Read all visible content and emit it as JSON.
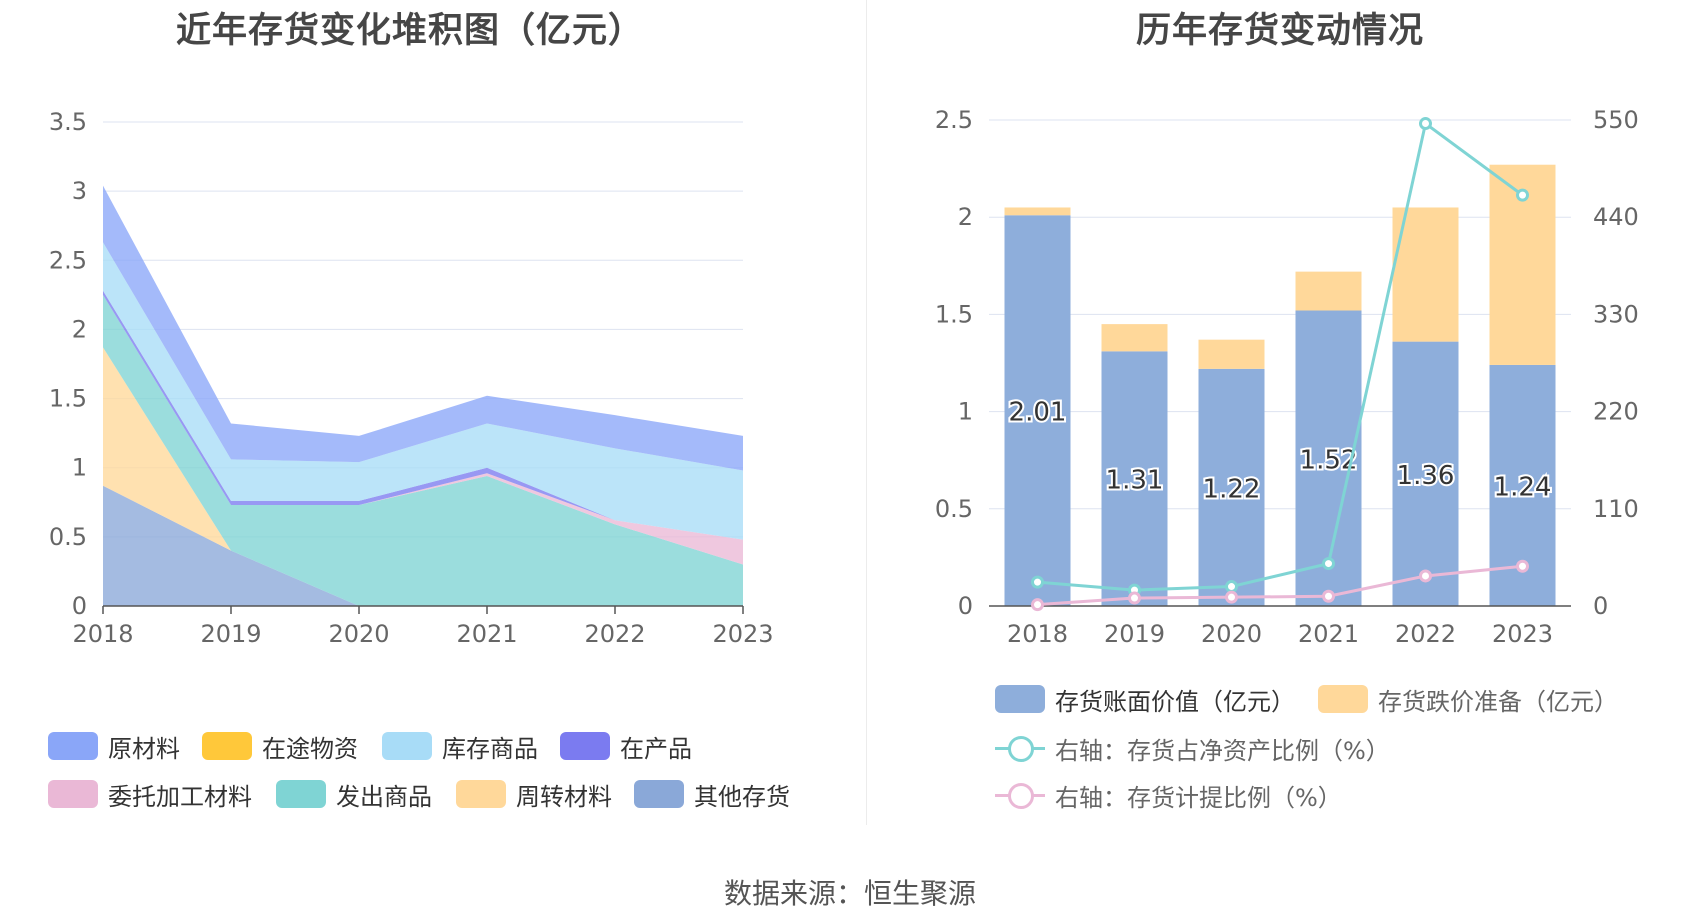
{
  "titles": {
    "left": "近年存货变化堆积图（亿元）",
    "right": "历年存货变动情况"
  },
  "source": "数据来源：恒生聚源",
  "chart_data": [
    {
      "type": "area",
      "stacked": true,
      "title": "近年存货变化堆积图（亿元）",
      "categories": [
        "2018",
        "2019",
        "2020",
        "2021",
        "2022",
        "2023"
      ],
      "ylim": [
        0,
        3.5
      ],
      "yticks": [
        "0",
        "0.5",
        "1",
        "1.5",
        "2",
        "2.5",
        "3",
        "3.5"
      ],
      "grid": true,
      "legend_position": "bottom",
      "series": [
        {
          "name": "其他存货",
          "color": "#8aa8d8",
          "values": [
            0.87,
            0.4,
            0.0,
            0.0,
            0.0,
            0.0
          ]
        },
        {
          "name": "周转材料",
          "color": "#ffd89a",
          "values": [
            1.0,
            0.0,
            0.0,
            0.0,
            0.0,
            0.0
          ]
        },
        {
          "name": "发出商品",
          "color": "#7fd4d4",
          "values": [
            0.38,
            0.33,
            0.73,
            0.94,
            0.59,
            0.3
          ]
        },
        {
          "name": "委托加工材料",
          "color": "#eab8d6",
          "values": [
            0.0,
            0.0,
            0.0,
            0.02,
            0.03,
            0.18
          ]
        },
        {
          "name": "在产品",
          "color": "#7b7bf0",
          "values": [
            0.03,
            0.03,
            0.03,
            0.04,
            0.0,
            0.0
          ]
        },
        {
          "name": "在途物资",
          "color": "#ffc83a",
          "values": [
            0.0,
            0.0,
            0.0,
            0.0,
            0.0,
            0.0
          ]
        },
        {
          "name": "库存商品",
          "color": "#a8dcf7",
          "values": [
            0.35,
            0.3,
            0.28,
            0.32,
            0.52,
            0.5
          ]
        },
        {
          "name": "原材料",
          "color": "#8aa6f8",
          "values": [
            0.41,
            0.26,
            0.19,
            0.2,
            0.24,
            0.25
          ]
        }
      ],
      "legend_order": [
        "原材料",
        "在途物资",
        "库存商品",
        "在产品",
        "委托加工材料",
        "发出商品",
        "周转材料",
        "其他存货"
      ]
    },
    {
      "type": "bar",
      "stacked": true,
      "title": "历年存货变动情况",
      "categories": [
        "2018",
        "2019",
        "2020",
        "2021",
        "2022",
        "2023"
      ],
      "ylim": [
        0,
        2.5
      ],
      "yticks": [
        "0",
        "0.5",
        "1",
        "1.5",
        "2",
        "2.5"
      ],
      "y2lim": [
        0,
        550
      ],
      "y2ticks": [
        "0",
        "110",
        "220",
        "330",
        "440",
        "550"
      ],
      "grid": true,
      "legend_position": "bottom",
      "series": [
        {
          "name": "存货账面价值（亿元）",
          "color": "#8eaedb",
          "values": [
            2.01,
            1.31,
            1.22,
            1.52,
            1.36,
            1.24
          ],
          "labels": [
            "2.01",
            "1.31",
            "1.22",
            "1.52",
            "1.36",
            "1.24"
          ]
        },
        {
          "name": "存货跌价准备（亿元）",
          "color": "#ffd89a",
          "values": [
            0.04,
            0.14,
            0.15,
            0.2,
            0.69,
            1.03
          ]
        },
        {
          "name": "右轴：存货占净资产比例（%）",
          "type": "line",
          "axis": "right",
          "color": "#7fd4d4",
          "values": [
            27,
            18,
            22,
            48,
            546,
            465
          ]
        },
        {
          "name": "右轴：存货计提比例（%）",
          "type": "line",
          "axis": "right",
          "color": "#eab8d6",
          "values": [
            1.5,
            9,
            10,
            11,
            34,
            45
          ]
        }
      ]
    }
  ]
}
